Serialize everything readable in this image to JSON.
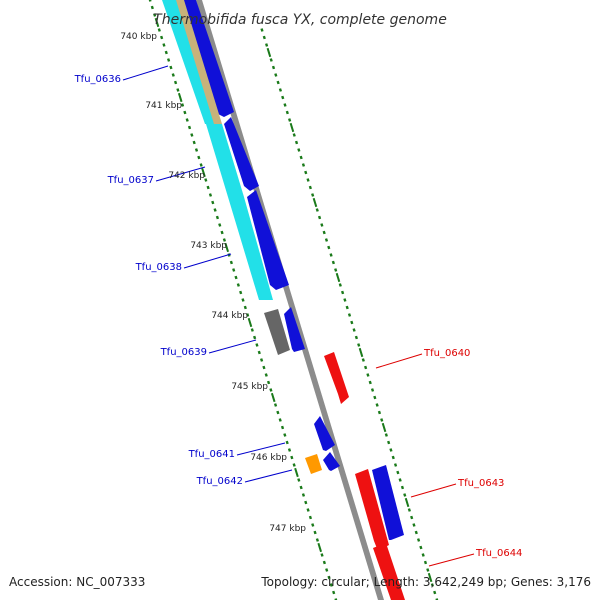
{
  "title": "Thermobifida fusca YX, complete genome",
  "footer": {
    "accession": "Accession: NC_007333",
    "summary": "Topology: circular; Length: 3,642,249 bp; Genes: 3,176"
  },
  "colors": {
    "forward_label": "#0000cc",
    "reverse_label": "#dd0000",
    "ticks": "#1a7a1a",
    "backbone": "#8c8c8c",
    "cds_blue": "#1010d8",
    "cds_red": "#ee1111",
    "cyan_track": "#22e0e8",
    "tan_track": "#c8b27a",
    "gray_track": "#666666",
    "orange_track": "#ff9900"
  },
  "kbp_labels": [
    "740 kbp",
    "741 kbp",
    "742 kbp",
    "743 kbp",
    "744 kbp",
    "745 kbp",
    "746 kbp",
    "747 kbp"
  ],
  "genes": [
    {
      "label": "Tfu_0636",
      "strand": "forward"
    },
    {
      "label": "Tfu_0637",
      "strand": "forward"
    },
    {
      "label": "Tfu_0638",
      "strand": "forward"
    },
    {
      "label": "Tfu_0639",
      "strand": "forward"
    },
    {
      "label": "Tfu_0640",
      "strand": "reverse"
    },
    {
      "label": "Tfu_0641",
      "strand": "forward"
    },
    {
      "label": "Tfu_0642",
      "strand": "forward"
    },
    {
      "label": "Tfu_0643",
      "strand": "reverse"
    },
    {
      "label": "Tfu_0644",
      "strand": "reverse"
    }
  ]
}
